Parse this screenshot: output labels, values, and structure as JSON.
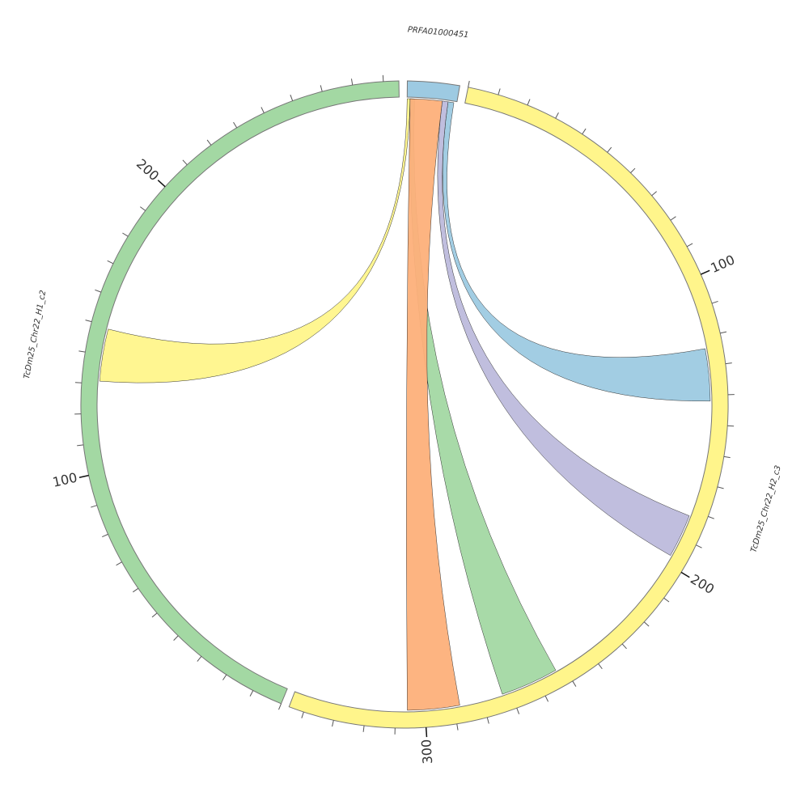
{
  "chart_data": {
    "type": "chord",
    "sectors": [
      {
        "name": "PRFA01000451",
        "length": 17,
        "color": "#9dcae2",
        "ticks": []
      },
      {
        "name": "TcDm25_Chr22_H2_c3",
        "length": 345,
        "color": "#fff58b",
        "labeled_ticks": [
          100,
          200,
          300
        ],
        "ticks": [
          0,
          10,
          20,
          30,
          40,
          50,
          60,
          70,
          80,
          90,
          100,
          110,
          120,
          130,
          140,
          150,
          160,
          170,
          180,
          190,
          200,
          210,
          220,
          230,
          240,
          250,
          260,
          270,
          280,
          290,
          300,
          310,
          320,
          330,
          340
        ]
      },
      {
        "name": "TcDm25_Chr22_H1_c2",
        "length": 285,
        "color": "#a3d8a3",
        "labeled_ticks": [
          100,
          200
        ],
        "ticks": [
          0,
          10,
          20,
          30,
          40,
          50,
          60,
          70,
          80,
          90,
          100,
          110,
          120,
          130,
          140,
          150,
          160,
          170,
          180,
          190,
          200,
          210,
          220,
          230,
          240,
          250,
          260,
          270,
          280
        ]
      }
    ],
    "links": [
      {
        "source": "PRFA01000451",
        "source_range": [
          0,
          1
        ],
        "target": "TcDm25_Chr22_H1_c2",
        "target_range": [
          131,
          149
        ],
        "color": "#fff58b"
      },
      {
        "source": "PRFA01000451",
        "source_range": [
          14,
          16
        ],
        "target": "TcDm25_Chr22_H2_c3",
        "target_range": [
          124,
          142
        ],
        "color": "#9dcae2"
      },
      {
        "source": "PRFA01000451",
        "source_range": [
          12,
          14
        ],
        "target": "TcDm25_Chr22_H2_c3",
        "target_range": [
          182,
          197
        ],
        "color": "#bdbbdc"
      },
      {
        "source": "PRFA01000451",
        "source_range": [
          1,
          2.5
        ],
        "target": "TcDm25_Chr22_H2_c3",
        "target_range": [
          253,
          273
        ],
        "color": "#a3d8a3"
      },
      {
        "source": "PRFA01000451",
        "source_range": [
          1,
          12
        ],
        "target": "TcDm25_Chr22_H2_c3",
        "target_range": [
          288,
          306
        ],
        "color": "#fdb07a"
      }
    ]
  }
}
